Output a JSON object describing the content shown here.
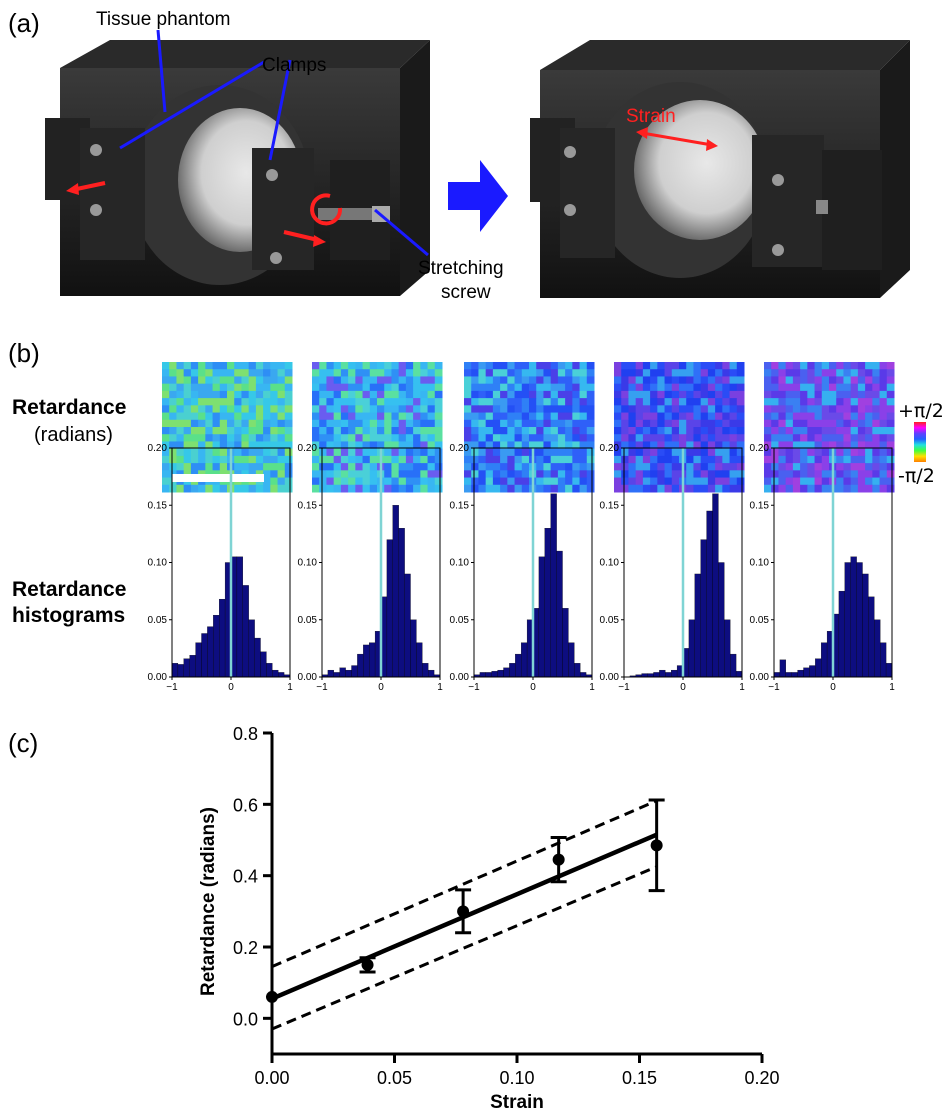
{
  "panel_a": {
    "label": "(a)",
    "callouts": {
      "tissue_phantom": "Tissue phantom",
      "clamps": "Clamps",
      "stretching_screw_line1": "Stretching",
      "stretching_screw_line2": "screw",
      "strain": "Strain"
    }
  },
  "panel_b": {
    "label": "(b)",
    "row1_title": "Retardance",
    "row1_subtitle": "(radians)",
    "row2_title_line1": "Retardance",
    "row2_title_line2": "histograms",
    "colorbar_top": "+π/2",
    "colorbar_bottom": "-π/2"
  },
  "panel_c": {
    "label": "(c)"
  },
  "colors": {
    "arrow_blue": "#1a1aff",
    "arrow_red": "#ff2020",
    "hist_bar": "#0d0d80",
    "hist_zero_line": "#7fd4d4"
  },
  "chart_data": [
    {
      "type": "bar",
      "histograms": [
        {
          "bins": [
            -0.95,
            -0.85,
            -0.75,
            -0.65,
            -0.55,
            -0.45,
            -0.35,
            -0.25,
            -0.15,
            -0.05,
            0.05,
            0.15,
            0.25,
            0.35,
            0.45,
            0.55,
            0.65,
            0.75,
            0.85,
            0.95
          ],
          "values": [
            0.012,
            0.011,
            0.016,
            0.019,
            0.03,
            0.038,
            0.044,
            0.054,
            0.068,
            0.1,
            0.105,
            0.105,
            0.08,
            0.05,
            0.034,
            0.022,
            0.012,
            0.006,
            0.004,
            0.002
          ]
        },
        {
          "bins": [
            -0.95,
            -0.85,
            -0.75,
            -0.65,
            -0.55,
            -0.45,
            -0.35,
            -0.25,
            -0.15,
            -0.05,
            0.05,
            0.15,
            0.25,
            0.35,
            0.45,
            0.55,
            0.65,
            0.75,
            0.85,
            0.95
          ],
          "values": [
            0.002,
            0.006,
            0.004,
            0.008,
            0.006,
            0.01,
            0.02,
            0.028,
            0.03,
            0.04,
            0.07,
            0.12,
            0.15,
            0.13,
            0.09,
            0.05,
            0.03,
            0.012,
            0.006,
            0.002
          ]
        },
        {
          "bins": [
            -0.95,
            -0.85,
            -0.75,
            -0.65,
            -0.55,
            -0.45,
            -0.35,
            -0.25,
            -0.15,
            -0.05,
            0.05,
            0.15,
            0.25,
            0.35,
            0.45,
            0.55,
            0.65,
            0.75,
            0.85,
            0.95
          ],
          "values": [
            0.002,
            0.004,
            0.004,
            0.005,
            0.006,
            0.008,
            0.012,
            0.02,
            0.03,
            0.05,
            0.06,
            0.105,
            0.13,
            0.16,
            0.11,
            0.06,
            0.03,
            0.012,
            0.004,
            0.002
          ]
        },
        {
          "bins": [
            -0.95,
            -0.85,
            -0.75,
            -0.65,
            -0.55,
            -0.45,
            -0.35,
            -0.25,
            -0.15,
            -0.05,
            0.05,
            0.15,
            0.25,
            0.35,
            0.45,
            0.55,
            0.65,
            0.75,
            0.85,
            0.95
          ],
          "values": [
            0.0,
            0.001,
            0.002,
            0.003,
            0.003,
            0.004,
            0.006,
            0.004,
            0.006,
            0.01,
            0.025,
            0.05,
            0.09,
            0.12,
            0.145,
            0.16,
            0.1,
            0.05,
            0.02,
            0.005
          ]
        },
        {
          "bins": [
            -0.95,
            -0.85,
            -0.75,
            -0.65,
            -0.55,
            -0.45,
            -0.35,
            -0.25,
            -0.15,
            -0.05,
            0.05,
            0.15,
            0.25,
            0.35,
            0.45,
            0.55,
            0.65,
            0.75,
            0.85,
            0.95
          ],
          "values": [
            0.004,
            0.015,
            0.004,
            0.004,
            0.006,
            0.008,
            0.01,
            0.016,
            0.03,
            0.04,
            0.055,
            0.075,
            0.1,
            0.105,
            0.1,
            0.09,
            0.07,
            0.05,
            0.03,
            0.012
          ]
        }
      ],
      "xlim": [
        -1,
        1
      ],
      "ylim": [
        0,
        0.2
      ],
      "x_ticks": [
        "−1",
        "0",
        "1"
      ],
      "y_ticks": [
        "0.00",
        "0.05",
        "0.10",
        "0.15",
        "0.20"
      ]
    },
    {
      "type": "scatter",
      "xlabel": "Strain",
      "ylabel": "Retardance (radians)",
      "xlim": [
        0,
        0.2
      ],
      "ylim": [
        -0.1,
        0.8
      ],
      "x_ticks": [
        "0.00",
        "0.05",
        "0.10",
        "0.15",
        "0.20"
      ],
      "y_ticks": [
        "0.0",
        "0.2",
        "0.4",
        "0.6",
        "0.8"
      ],
      "points": [
        {
          "x": 0.0,
          "y": 0.06,
          "yerr": 0.0
        },
        {
          "x": 0.039,
          "y": 0.15,
          "yerr": 0.02
        },
        {
          "x": 0.078,
          "y": 0.3,
          "yerr": 0.06
        },
        {
          "x": 0.117,
          "y": 0.445,
          "yerr": 0.062
        },
        {
          "x": 0.157,
          "y": 0.485,
          "yerr": 0.127
        }
      ],
      "fit_line": {
        "x": [
          0.0,
          0.157
        ],
        "y": [
          0.055,
          0.515
        ]
      },
      "ci_upper": {
        "x": [
          0.0,
          0.157
        ],
        "y": [
          0.145,
          0.61
        ]
      },
      "ci_lower": {
        "x": [
          0.0,
          0.157
        ],
        "y": [
          -0.03,
          0.425
        ]
      }
    }
  ]
}
